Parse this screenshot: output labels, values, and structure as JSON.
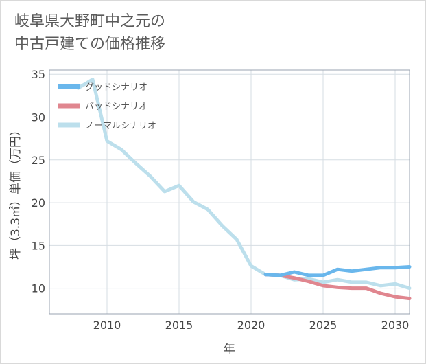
{
  "title_line1": "岐阜県大野町中之元の",
  "title_line2": "中古戸建ての価格推移",
  "chart_data": {
    "type": "line",
    "xlabel": "年",
    "ylabel": "坪（3.3㎡）単価（万円）",
    "xlim": [
      2006,
      2031
    ],
    "ylim": [
      7,
      35.5
    ],
    "x_ticks": [
      2010,
      2015,
      2020,
      2025,
      2030
    ],
    "y_ticks": [
      10,
      15,
      20,
      25,
      30,
      35
    ],
    "grid": true,
    "legend_position": "top-left",
    "series": [
      {
        "name": "グッドシナリオ",
        "color": "#6ab7ec",
        "x": [
          2021,
          2022,
          2023,
          2024,
          2025,
          2026,
          2027,
          2028,
          2029,
          2030,
          2031
        ],
        "y": [
          11.6,
          11.5,
          11.9,
          11.5,
          11.5,
          12.2,
          12.0,
          12.2,
          12.4,
          12.4,
          12.5
        ]
      },
      {
        "name": "バッドシナリオ",
        "color": "#e0868f",
        "x": [
          2021,
          2022,
          2023,
          2024,
          2025,
          2026,
          2027,
          2028,
          2029,
          2030,
          2031
        ],
        "y": [
          11.6,
          11.5,
          11.2,
          10.8,
          10.3,
          10.1,
          10.0,
          10.0,
          9.4,
          9.0,
          8.8
        ]
      },
      {
        "name": "ノーマルシナリオ",
        "color": "#bcdfec",
        "x": [
          2008,
          2009,
          2010,
          2011,
          2012,
          2013,
          2014,
          2015,
          2016,
          2017,
          2018,
          2019,
          2020,
          2021,
          2022,
          2023,
          2024,
          2025,
          2026,
          2027,
          2028,
          2029,
          2030,
          2031
        ],
        "y": [
          33.4,
          34.4,
          27.2,
          26.2,
          24.6,
          23.1,
          21.3,
          22.0,
          20.1,
          19.2,
          17.3,
          15.7,
          12.6,
          11.6,
          11.5,
          11.0,
          11.1,
          10.7,
          11.0,
          10.7,
          10.7,
          10.3,
          10.5,
          10.0
        ]
      }
    ]
  }
}
